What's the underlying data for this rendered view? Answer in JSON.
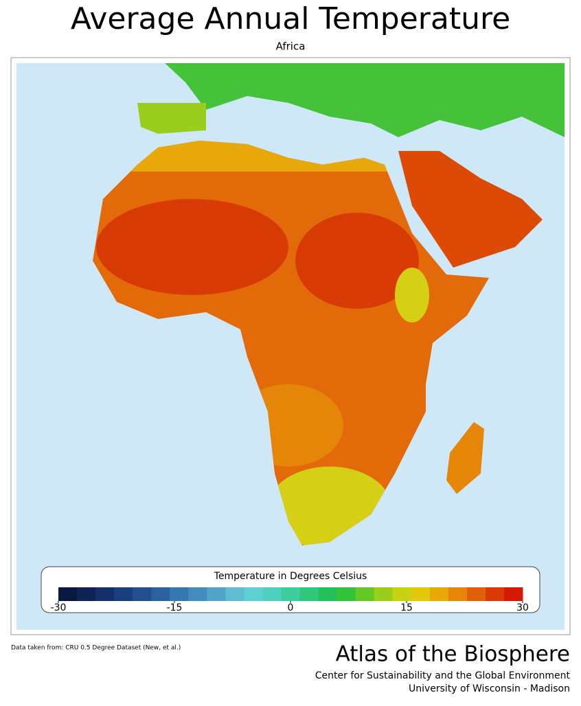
{
  "header": {
    "title": "Average Annual Temperature",
    "subtitle": "Africa"
  },
  "legend": {
    "title": "Temperature in Degrees Celsius",
    "range": [
      -30,
      30
    ],
    "ticks": [
      -30,
      -15,
      0,
      15,
      30
    ],
    "colors": [
      "#0b1840",
      "#0f2456",
      "#14306a",
      "#1a3f7e",
      "#214f8f",
      "#2a62a0",
      "#3577b0",
      "#428cbe",
      "#51a3c9",
      "#5fbcd2",
      "#5fd0d2",
      "#4fd1bd",
      "#3fcc9e",
      "#31c67c",
      "#25bf5a",
      "#33c33a",
      "#66c828",
      "#9acd1e",
      "#c8d215",
      "#e3c80e",
      "#e8a80a",
      "#e58608",
      "#e06206",
      "#d83a04",
      "#d41a02"
    ]
  },
  "footer": {
    "source": "Data taken from: CRU 0.5 Degree Dataset (New, et al.)",
    "brand": "Atlas of the Biosphere",
    "center": "Center for Sustainability and the Global Environment",
    "university": "University of Wisconsin - Madison"
  }
}
